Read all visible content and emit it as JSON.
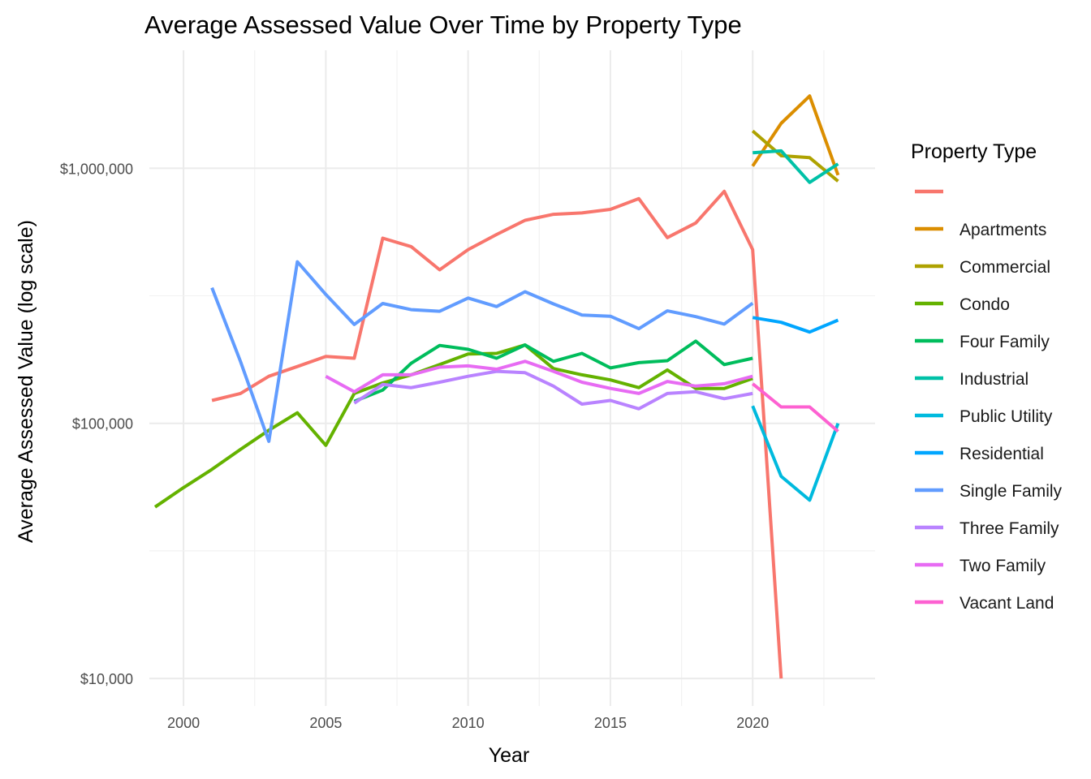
{
  "chart_data": {
    "type": "line",
    "title": "Average Assessed Value Over Time by Property Type",
    "xlabel": "Year",
    "ylabel": "Average Assessed Value (log scale)",
    "y_scale": "log10",
    "xlim": [
      1998.8,
      2024.3
    ],
    "ylim": [
      7800,
      2900000
    ],
    "x_ticks": [
      2000,
      2005,
      2010,
      2015,
      2020
    ],
    "x_tick_labels": [
      "2000",
      "2005",
      "2010",
      "2015",
      "2020"
    ],
    "y_ticks": [
      10000,
      100000,
      1000000
    ],
    "y_tick_labels": [
      "$10,000",
      "$100,000",
      "$1,000,000"
    ],
    "grid": true,
    "legend_title": "Property Type",
    "legend_position": "right",
    "series": [
      {
        "name": "",
        "color": "#F8766D",
        "x": [
          2001,
          2002,
          2003,
          2004,
          2005,
          2006,
          2007,
          2008,
          2009,
          2010,
          2011,
          2012,
          2013,
          2014,
          2015,
          2016,
          2017,
          2018,
          2019,
          2020,
          2021
        ],
        "values": [
          123000,
          131000,
          153000,
          167000,
          183000,
          180000,
          532000,
          493000,
          400000,
          480000,
          550000,
          625000,
          660000,
          668000,
          690000,
          760000,
          535000,
          610000,
          812000,
          480000,
          10000
        ]
      },
      {
        "name": "Apartments",
        "color": "#DB8E00",
        "x": [
          2020,
          2021,
          2022,
          2023
        ],
        "values": [
          1020000,
          1500000,
          1920000,
          940000
        ]
      },
      {
        "name": "Commercial",
        "color": "#AEA200",
        "x": [
          2020,
          2021,
          2022,
          2023
        ],
        "values": [
          1400000,
          1120000,
          1100000,
          890000
        ]
      },
      {
        "name": "Condo",
        "color": "#64B200",
        "x": [
          1999,
          2000,
          2001,
          2002,
          2003,
          2004,
          2005,
          2006,
          2007,
          2008,
          2009,
          2010,
          2011,
          2012,
          2013,
          2014,
          2015,
          2016,
          2017,
          2018,
          2019,
          2020
        ],
        "values": [
          47000,
          56000,
          66000,
          79000,
          94000,
          110000,
          82000,
          131000,
          144000,
          155000,
          170000,
          187000,
          188000,
          203000,
          164000,
          155000,
          148000,
          138000,
          162000,
          137000,
          137000,
          150000
        ]
      },
      {
        "name": "Four Family",
        "color": "#00BD5C",
        "x": [
          2006,
          2007,
          2008,
          2009,
          2010,
          2011,
          2012,
          2013,
          2014,
          2015,
          2016,
          2017,
          2018,
          2019,
          2020
        ],
        "values": [
          122000,
          135000,
          172000,
          202000,
          195000,
          180000,
          203000,
          175000,
          188000,
          165000,
          173000,
          176000,
          210000,
          170000,
          180000
        ]
      },
      {
        "name": "Industrial",
        "color": "#00C1A7",
        "x": [
          2020,
          2021,
          2022,
          2023
        ],
        "values": [
          1150000,
          1170000,
          880000,
          1040000
        ]
      },
      {
        "name": "Public Utility",
        "color": "#00BADE",
        "x": [
          2020,
          2021,
          2022,
          2023
        ],
        "values": [
          117000,
          62000,
          50000,
          100000
        ]
      },
      {
        "name": "Residential",
        "color": "#00A6FF",
        "x": [
          2020,
          2021,
          2022,
          2023
        ],
        "values": [
          260000,
          249000,
          228000,
          254000
        ]
      },
      {
        "name": "Single Family",
        "color": "#619CFF",
        "x": [
          2001,
          2002,
          2003,
          2004,
          2005,
          2006,
          2007,
          2008,
          2009,
          2010,
          2011,
          2012,
          2013,
          2014,
          2015,
          2016,
          2017,
          2018,
          2019,
          2020
        ],
        "values": [
          340000,
          175000,
          85000,
          430000,
          320000,
          244000,
          295000,
          279000,
          275000,
          310000,
          287000,
          328000,
          294000,
          266000,
          263000,
          235000,
          276000,
          262000,
          245000,
          296000
        ]
      },
      {
        "name": "Three Family",
        "color": "#B983FF",
        "x": [
          2006,
          2007,
          2008,
          2009,
          2010,
          2011,
          2012,
          2013,
          2014,
          2015,
          2016,
          2017,
          2018,
          2019,
          2020
        ],
        "values": [
          120000,
          142000,
          138000,
          145000,
          153000,
          160000,
          158000,
          140000,
          119000,
          123000,
          114000,
          131000,
          133000,
          125000,
          131000
        ]
      },
      {
        "name": "Two Family",
        "color": "#E76BF3",
        "x": [
          2005,
          2006,
          2007,
          2008,
          2009,
          2010,
          2011,
          2012,
          2013,
          2014,
          2015,
          2016,
          2017,
          2018,
          2019,
          2020
        ],
        "values": [
          153000,
          133000,
          155000,
          155000,
          166000,
          168000,
          163000,
          175000,
          160000,
          145000,
          137000,
          131000,
          146000,
          140000,
          143000,
          153000
        ]
      },
      {
        "name": "Vacant Land",
        "color": "#FD61D1",
        "x": [
          2020,
          2021,
          2022,
          2023
        ],
        "values": [
          143000,
          116000,
          116000,
          93000
        ]
      }
    ]
  }
}
